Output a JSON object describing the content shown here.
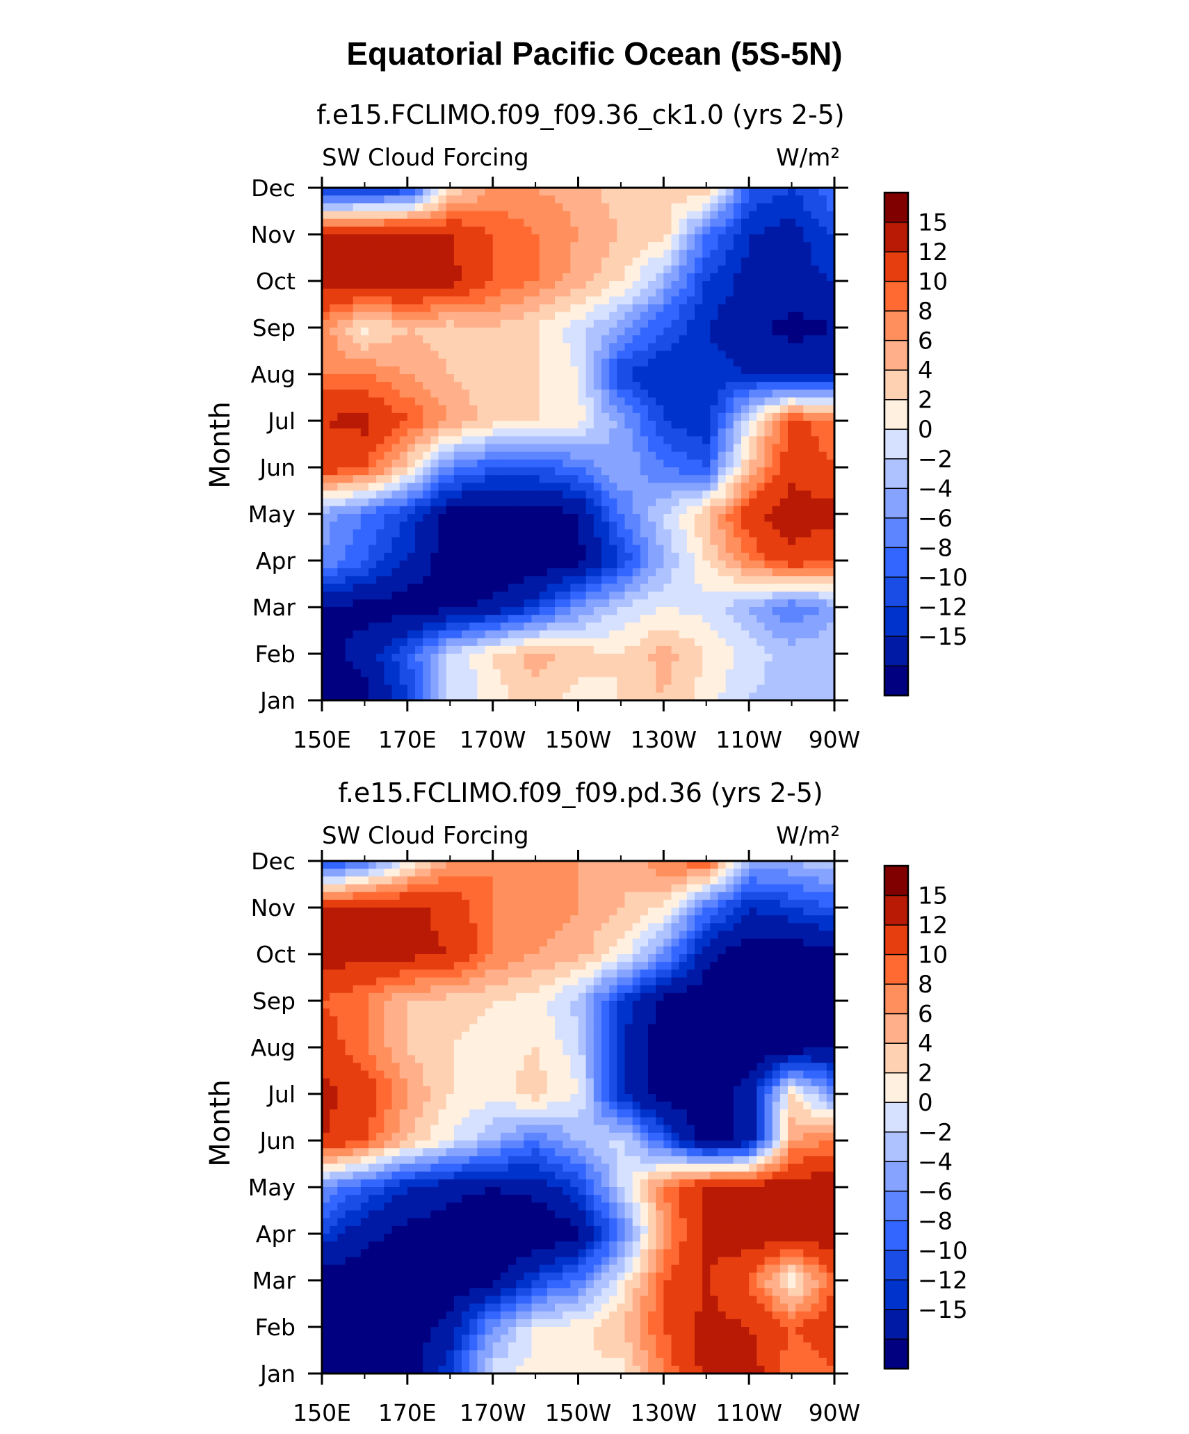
{
  "figure_title": "Equatorial Pacific Ocean (5S-5N)",
  "colors": {
    "levels_palette": [
      "#000080",
      "#001aa6",
      "#0033cc",
      "#1a4de6",
      "#3366ff",
      "#5c85ff",
      "#85a3ff",
      "#adc2ff",
      "#d6e0ff",
      "#fff0e0",
      "#ffd1b3",
      "#ffb08a",
      "#ff8f5c",
      "#ff6a33",
      "#e63e0f",
      "#b81a05",
      "#800000"
    ]
  },
  "chart_data": [
    {
      "type": "heatmap",
      "title": "f.e15.FCLIMO.f09_f09.36_ck1.0 (yrs 2-5)",
      "left_label": "SW Cloud Forcing",
      "right_label": "W/m²",
      "ylabel": "Month",
      "x_ticks": [
        "150E",
        "170E",
        "170W",
        "150W",
        "130W",
        "110W",
        "90W"
      ],
      "y_ticks": [
        "Jan",
        "Feb",
        "Mar",
        "Apr",
        "May",
        "Jun",
        "Jul",
        "Aug",
        "Sep",
        "Oct",
        "Nov",
        "Dec"
      ],
      "x_lon": [
        150,
        160,
        170,
        180,
        190,
        200,
        210,
        220,
        230,
        240,
        250,
        260,
        270
      ],
      "colorbar_labels": [
        "15",
        "12",
        "10",
        "8",
        "6",
        "4",
        "2",
        "0",
        "-2",
        "-4",
        "-6",
        "-8",
        "-10",
        "-12",
        "-15"
      ],
      "values": [
        [
          -17,
          -16,
          -10,
          0,
          3,
          5,
          3,
          4,
          6,
          3,
          0,
          -1,
          -2
        ],
        [
          -16,
          -14,
          -8,
          0,
          4,
          7,
          5,
          4,
          7,
          4,
          1,
          -1,
          0
        ],
        [
          -15,
          -16,
          -17,
          -16,
          -14,
          -10,
          -4,
          0,
          2,
          1,
          -2,
          -6,
          -3
        ],
        [
          -4,
          -8,
          -12,
          -17,
          -18,
          -18,
          -16,
          -10,
          -2,
          4,
          10,
          14,
          12
        ],
        [
          -3,
          -6,
          -10,
          -16,
          -17,
          -17,
          -15,
          -6,
          0,
          6,
          14,
          17,
          16
        ],
        [
          14,
          12,
          5,
          -5,
          -8,
          -8,
          -6,
          -2,
          -6,
          -8,
          6,
          14,
          12
        ],
        [
          15,
          16,
          12,
          8,
          5,
          4,
          3,
          -3,
          -10,
          -12,
          2,
          13,
          10
        ],
        [
          10,
          10,
          8,
          6,
          5,
          4,
          2,
          -10,
          -12,
          -11,
          -12,
          -13,
          -12
        ],
        [
          9,
          3,
          6,
          5,
          6,
          4,
          1,
          -3,
          -8,
          -12,
          -14,
          -16,
          -15
        ],
        [
          17,
          17,
          17,
          16,
          12,
          10,
          7,
          4,
          -2,
          -10,
          -13,
          -13,
          -12
        ],
        [
          16,
          17,
          17,
          15,
          12,
          10,
          8,
          6,
          5,
          -6,
          -12,
          -13,
          -10
        ],
        [
          -12,
          -12,
          -10,
          4,
          8,
          8,
          7,
          5,
          4,
          7,
          -8,
          -10,
          -6
        ]
      ]
    },
    {
      "type": "heatmap",
      "title": "f.e15.FCLIMO.f09_f09.pd.36 (yrs 2-5)",
      "left_label": "SW Cloud Forcing",
      "right_label": "W/m²",
      "ylabel": "Month",
      "x_ticks": [
        "150E",
        "170E",
        "170W",
        "150W",
        "130W",
        "110W",
        "90W"
      ],
      "y_ticks": [
        "Jan",
        "Feb",
        "Mar",
        "Apr",
        "May",
        "Jun",
        "Jul",
        "Aug",
        "Sep",
        "Oct",
        "Nov",
        "Dec"
      ],
      "x_lon": [
        150,
        160,
        170,
        180,
        190,
        200,
        210,
        220,
        230,
        240,
        250,
        260,
        270
      ],
      "colorbar_labels": [
        "15",
        "12",
        "10",
        "8",
        "6",
        "4",
        "2",
        "0",
        "-2",
        "-4",
        "-6",
        "-8",
        "-10",
        "-12",
        "-15"
      ],
      "values": [
        [
          -17,
          -17,
          -17,
          -10,
          1,
          3,
          4,
          3,
          10,
          16,
          17,
          10,
          12
        ],
        [
          -17,
          -17,
          -17,
          -14,
          -4,
          2,
          3,
          6,
          12,
          16,
          15,
          12,
          14
        ],
        [
          -17,
          -17,
          -17,
          -17,
          -16,
          -10,
          -6,
          2,
          12,
          15,
          12,
          2,
          12
        ],
        [
          -10,
          -14,
          -16,
          -17,
          -18,
          -18,
          -16,
          -6,
          8,
          16,
          17,
          17,
          17
        ],
        [
          -4,
          -8,
          -12,
          -14,
          -15,
          -14,
          -10,
          0,
          10,
          16,
          17,
          17,
          17
        ],
        [
          15,
          12,
          6,
          2,
          -2,
          -6,
          -2,
          1,
          -8,
          -17,
          -14,
          8,
          10
        ],
        [
          16,
          14,
          8,
          4,
          3,
          5,
          2,
          -12,
          -17,
          -17,
          -14,
          4,
          -4
        ],
        [
          14,
          10,
          6,
          4,
          3,
          4,
          1,
          -12,
          -17,
          -17,
          -17,
          -17,
          -15
        ],
        [
          12,
          10,
          6,
          5,
          4,
          3,
          -1,
          -10,
          -16,
          -17,
          -17,
          -17,
          -17
        ],
        [
          17,
          16,
          16,
          15,
          10,
          8,
          7,
          3,
          -4,
          -14,
          -17,
          -17,
          -16
        ],
        [
          15,
          16,
          16,
          14,
          10,
          9,
          8,
          6,
          4,
          -6,
          -12,
          -10,
          -8
        ],
        [
          -10,
          -6,
          2,
          8,
          10,
          8,
          8,
          6,
          10,
          12,
          -2,
          -2,
          0
        ]
      ]
    }
  ]
}
